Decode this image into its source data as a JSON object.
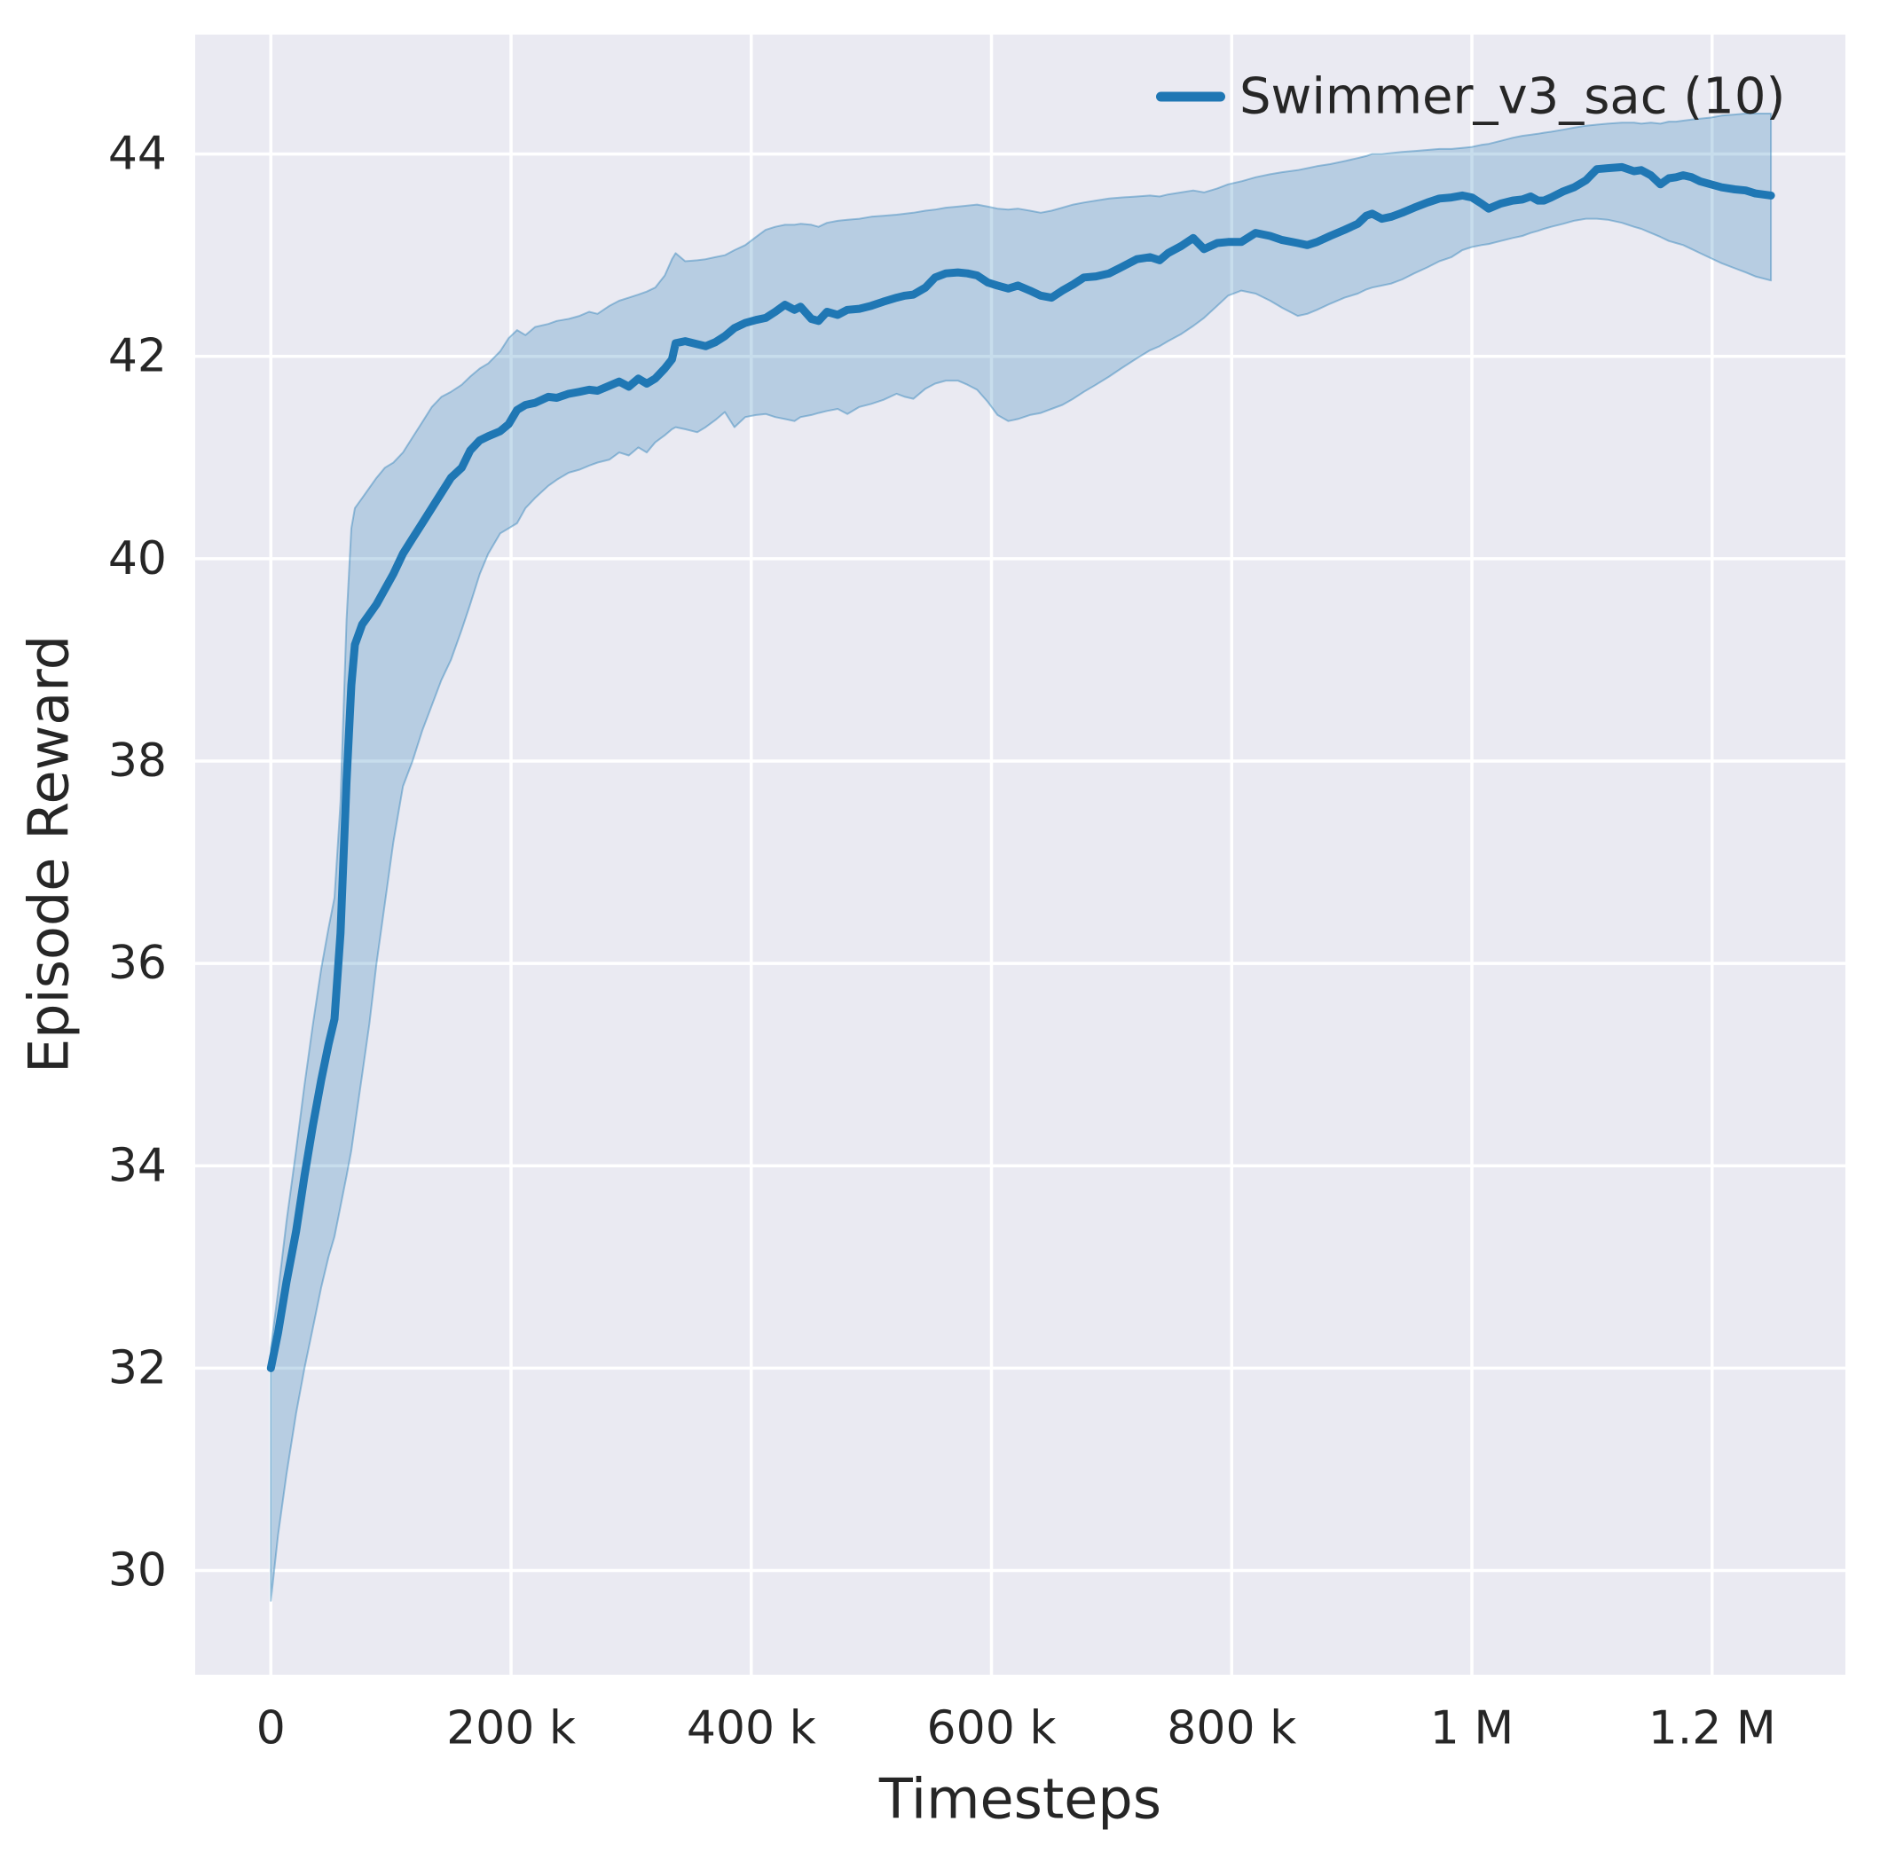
{
  "axes": {
    "xlabel": "Timesteps",
    "ylabel": "Episode Reward"
  },
  "legend": {
    "label": "Swimmer_v3_sac (10)"
  },
  "chart_data": {
    "type": "line",
    "title": "",
    "xlabel": "Timesteps",
    "ylabel": "Episode Reward",
    "legend_entries": [
      "Swimmer_v3_sac (10)"
    ],
    "legend_position": "upper right",
    "grid": true,
    "xlim": [
      -63000,
      1311000
    ],
    "ylim": [
      28.97,
      45.18
    ],
    "x_ticks": [
      {
        "value": 0,
        "label": "0"
      },
      {
        "value": 200000,
        "label": "200 k"
      },
      {
        "value": 400000,
        "label": "400 k"
      },
      {
        "value": 600000,
        "label": "600 k"
      },
      {
        "value": 800000,
        "label": "800 k"
      },
      {
        "value": 1000000,
        "label": "1 M"
      },
      {
        "value": 1200000,
        "label": "1.2 M"
      }
    ],
    "y_ticks": [
      {
        "value": 30,
        "label": "30"
      },
      {
        "value": 32,
        "label": "32"
      },
      {
        "value": 34,
        "label": "34"
      },
      {
        "value": 36,
        "label": "36"
      },
      {
        "value": 38,
        "label": "38"
      },
      {
        "value": 40,
        "label": "40"
      },
      {
        "value": 42,
        "label": "42"
      },
      {
        "value": 44,
        "label": "44"
      }
    ],
    "colors": {
      "line": "#1f77b4",
      "band": "rgba(31,119,180,0.25)",
      "band_edge": "rgba(31,119,180,0.4)",
      "axes_bg": "#eaeaf2",
      "grid": "#ffffff",
      "text": "#262626"
    },
    "series": [
      {
        "name": "Swimmer_v3_sac (10)",
        "points_format": [
          "timestep",
          "mean",
          "lower",
          "upper"
        ],
        "points": [
          [
            0,
            32.0,
            29.7,
            32.2
          ],
          [
            6000,
            32.35,
            30.35,
            32.75
          ],
          [
            13000,
            32.85,
            30.95,
            33.45
          ],
          [
            21000,
            33.35,
            31.55,
            34.15
          ],
          [
            28000,
            33.9,
            32.0,
            34.8
          ],
          [
            35000,
            34.4,
            32.4,
            35.4
          ],
          [
            42000,
            34.85,
            32.8,
            35.95
          ],
          [
            48000,
            35.2,
            33.1,
            36.35
          ],
          [
            53000,
            35.45,
            33.3,
            36.65
          ],
          [
            58000,
            36.3,
            33.6,
            37.6
          ],
          [
            63000,
            37.8,
            33.9,
            39.4
          ],
          [
            67000,
            38.75,
            34.15,
            40.3
          ],
          [
            70000,
            39.15,
            34.4,
            40.5
          ],
          [
            76000,
            39.35,
            34.9,
            40.6
          ],
          [
            82000,
            39.45,
            35.4,
            40.7
          ],
          [
            88000,
            39.55,
            36.0,
            40.8
          ],
          [
            95000,
            39.7,
            36.6,
            40.9
          ],
          [
            102000,
            39.85,
            37.2,
            40.95
          ],
          [
            110000,
            40.05,
            37.75,
            41.05
          ],
          [
            118000,
            40.2,
            38.0,
            41.2
          ],
          [
            126000,
            40.35,
            38.3,
            41.35
          ],
          [
            134000,
            40.5,
            38.55,
            41.5
          ],
          [
            142000,
            40.65,
            38.8,
            41.6
          ],
          [
            150000,
            40.8,
            39.0,
            41.65
          ],
          [
            159000,
            40.9,
            39.3,
            41.72
          ],
          [
            166000,
            41.07,
            39.55,
            41.8
          ],
          [
            174000,
            41.17,
            39.85,
            41.88
          ],
          [
            181000,
            41.21,
            40.05,
            41.93
          ],
          [
            191000,
            41.26,
            40.25,
            42.05
          ],
          [
            198000,
            41.33,
            40.3,
            42.18
          ],
          [
            205000,
            41.47,
            40.35,
            42.26
          ],
          [
            212000,
            41.52,
            40.5,
            42.21
          ],
          [
            220000,
            41.54,
            40.6,
            42.29
          ],
          [
            231000,
            41.6,
            40.72,
            42.32
          ],
          [
            238000,
            41.59,
            40.78,
            42.35
          ],
          [
            248000,
            41.63,
            40.85,
            42.37
          ],
          [
            257000,
            41.65,
            40.88,
            42.4
          ],
          [
            265000,
            41.67,
            40.92,
            42.44
          ],
          [
            272000,
            41.66,
            40.95,
            42.42
          ],
          [
            282000,
            41.71,
            40.98,
            42.5
          ],
          [
            290000,
            41.75,
            41.05,
            42.55
          ],
          [
            298000,
            41.7,
            41.02,
            42.58
          ],
          [
            306000,
            41.78,
            41.1,
            42.61
          ],
          [
            313000,
            41.73,
            41.05,
            42.64
          ],
          [
            320000,
            41.78,
            41.15,
            42.68
          ],
          [
            328000,
            41.88,
            41.22,
            42.8
          ],
          [
            334000,
            41.97,
            41.28,
            42.96
          ],
          [
            337000,
            42.13,
            41.3,
            43.02
          ],
          [
            345000,
            42.15,
            41.28,
            42.94
          ],
          [
            355000,
            42.12,
            41.25,
            42.95
          ],
          [
            362000,
            42.1,
            41.3,
            42.96
          ],
          [
            370000,
            42.14,
            41.37,
            42.98
          ],
          [
            378000,
            42.2,
            41.45,
            43.0
          ],
          [
            386000,
            42.28,
            41.3,
            43.05
          ],
          [
            395000,
            42.33,
            41.4,
            43.1
          ],
          [
            404000,
            42.36,
            41.42,
            43.18
          ],
          [
            412000,
            42.38,
            41.43,
            43.25
          ],
          [
            420000,
            42.44,
            41.4,
            43.28
          ],
          [
            428000,
            42.51,
            41.38,
            43.3
          ],
          [
            436000,
            42.46,
            41.36,
            43.3
          ],
          [
            441000,
            42.49,
            41.4,
            43.31
          ],
          [
            450000,
            42.37,
            41.42,
            43.3
          ],
          [
            456000,
            42.35,
            41.44,
            43.28
          ],
          [
            463000,
            42.44,
            41.46,
            43.32
          ],
          [
            472000,
            42.41,
            41.48,
            43.34
          ],
          [
            480000,
            42.46,
            41.43,
            43.35
          ],
          [
            490000,
            42.47,
            41.5,
            43.36
          ],
          [
            500000,
            42.5,
            41.53,
            43.38
          ],
          [
            510000,
            42.54,
            41.57,
            43.39
          ],
          [
            521000,
            42.58,
            41.63,
            43.4
          ],
          [
            528000,
            42.6,
            41.6,
            43.41
          ],
          [
            535000,
            42.61,
            41.58,
            43.42
          ],
          [
            545000,
            42.68,
            41.68,
            43.44
          ],
          [
            553000,
            42.78,
            41.73,
            43.45
          ],
          [
            562000,
            42.82,
            41.76,
            43.47
          ],
          [
            572000,
            42.83,
            41.76,
            43.48
          ],
          [
            580000,
            42.82,
            41.72,
            43.49
          ],
          [
            588000,
            42.8,
            41.67,
            43.5
          ],
          [
            597000,
            42.73,
            41.55,
            43.48
          ],
          [
            605000,
            42.7,
            41.42,
            43.46
          ],
          [
            614000,
            42.67,
            41.36,
            43.45
          ],
          [
            622000,
            42.7,
            41.38,
            43.46
          ],
          [
            632000,
            42.65,
            41.42,
            43.44
          ],
          [
            641000,
            42.6,
            41.44,
            43.42
          ],
          [
            650000,
            42.58,
            41.48,
            43.44
          ],
          [
            659000,
            42.65,
            41.52,
            43.47
          ],
          [
            668000,
            42.71,
            41.58,
            43.5
          ],
          [
            677000,
            42.78,
            41.65,
            43.52
          ],
          [
            687000,
            42.79,
            41.72,
            43.54
          ],
          [
            698000,
            42.82,
            41.8,
            43.56
          ],
          [
            708000,
            42.88,
            41.88,
            43.57
          ],
          [
            721000,
            42.96,
            41.98,
            43.58
          ],
          [
            732000,
            42.98,
            42.06,
            43.59
          ],
          [
            740000,
            42.95,
            42.1,
            43.58
          ],
          [
            747000,
            43.02,
            42.15,
            43.6
          ],
          [
            758000,
            43.09,
            42.22,
            43.62
          ],
          [
            768000,
            43.17,
            42.3,
            43.64
          ],
          [
            777000,
            43.06,
            42.38,
            43.62
          ],
          [
            788000,
            43.12,
            42.5,
            43.66
          ],
          [
            797000,
            43.13,
            42.6,
            43.7
          ],
          [
            808000,
            43.13,
            42.65,
            43.73
          ],
          [
            820000,
            43.22,
            42.62,
            43.77
          ],
          [
            832000,
            43.19,
            42.55,
            43.8
          ],
          [
            842000,
            43.15,
            42.48,
            43.82
          ],
          [
            855000,
            43.12,
            42.4,
            43.84
          ],
          [
            863000,
            43.1,
            42.42,
            43.86
          ],
          [
            871000,
            43.13,
            42.46,
            43.88
          ],
          [
            882000,
            43.19,
            42.52,
            43.9
          ],
          [
            894000,
            43.25,
            42.58,
            43.93
          ],
          [
            905000,
            43.31,
            42.62,
            43.96
          ],
          [
            912000,
            43.39,
            42.66,
            43.98
          ],
          [
            917000,
            43.41,
            42.68,
            44.0
          ],
          [
            925000,
            43.36,
            42.7,
            44.0
          ],
          [
            933000,
            43.38,
            42.72,
            44.01
          ],
          [
            942000,
            43.42,
            42.76,
            44.02
          ],
          [
            952000,
            43.47,
            42.82,
            44.03
          ],
          [
            963000,
            43.52,
            42.88,
            44.04
          ],
          [
            973000,
            43.56,
            42.94,
            44.05
          ],
          [
            983000,
            43.57,
            42.98,
            44.05
          ],
          [
            992000,
            43.59,
            43.05,
            44.06
          ],
          [
            1000000,
            43.57,
            43.08,
            44.07
          ],
          [
            1008000,
            43.51,
            43.1,
            44.09
          ],
          [
            1014000,
            43.46,
            43.11,
            44.1
          ],
          [
            1024000,
            43.51,
            43.14,
            44.13
          ],
          [
            1034000,
            43.54,
            43.17,
            44.16
          ],
          [
            1042000,
            43.55,
            43.19,
            44.18
          ],
          [
            1049000,
            43.58,
            43.22,
            44.19
          ],
          [
            1055000,
            43.54,
            43.24,
            44.2
          ],
          [
            1060000,
            43.54,
            43.26,
            44.21
          ],
          [
            1066000,
            43.57,
            43.28,
            44.22
          ],
          [
            1076000,
            43.63,
            43.31,
            44.24
          ],
          [
            1085000,
            43.67,
            43.34,
            44.26
          ],
          [
            1095000,
            43.74,
            43.36,
            44.28
          ],
          [
            1104000,
            43.85,
            43.36,
            44.29
          ],
          [
            1113000,
            43.86,
            43.35,
            44.3
          ],
          [
            1125000,
            43.87,
            43.32,
            44.31
          ],
          [
            1135000,
            43.83,
            43.28,
            44.31
          ],
          [
            1141000,
            43.84,
            43.26,
            44.3
          ],
          [
            1149000,
            43.79,
            43.22,
            44.31
          ],
          [
            1157000,
            43.7,
            43.18,
            44.3
          ],
          [
            1164000,
            43.76,
            43.14,
            44.32
          ],
          [
            1170000,
            43.77,
            43.12,
            44.32
          ],
          [
            1176000,
            43.79,
            43.1,
            44.33
          ],
          [
            1183000,
            43.77,
            43.06,
            44.34
          ],
          [
            1190000,
            43.73,
            43.02,
            44.35
          ],
          [
            1199000,
            43.7,
            42.97,
            44.36
          ],
          [
            1208000,
            43.67,
            42.92,
            44.38
          ],
          [
            1219000,
            43.65,
            42.87,
            44.39
          ],
          [
            1228000,
            43.64,
            42.83,
            44.4
          ],
          [
            1236000,
            43.61,
            42.79,
            44.4
          ],
          [
            1249000,
            43.59,
            42.75,
            44.4
          ]
        ]
      }
    ]
  }
}
